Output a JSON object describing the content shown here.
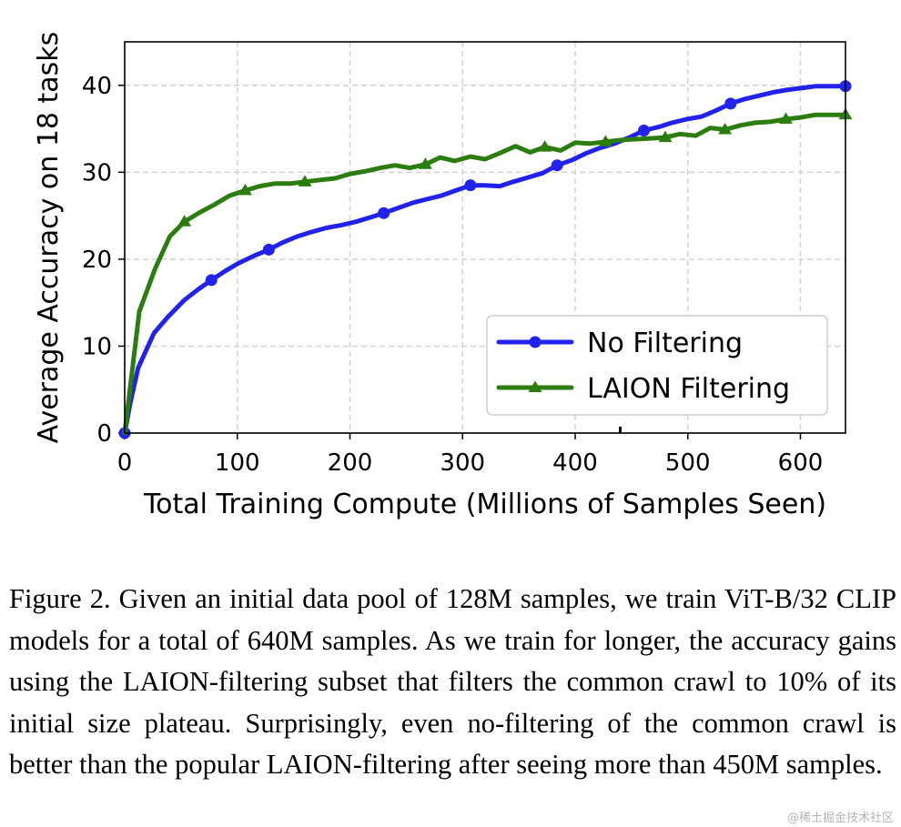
{
  "chart_data": {
    "type": "line",
    "xlabel": "Total Training Compute (Millions of Samples Seen)",
    "ylabel": "Average Accuracy on 18 tasks",
    "xlim": [
      0,
      640
    ],
    "ylim": [
      0,
      45
    ],
    "xticks": [
      0,
      100,
      200,
      300,
      400,
      500,
      600
    ],
    "yticks": [
      0,
      10,
      20,
      30,
      40
    ],
    "grid": true,
    "legend_position": "lower-right",
    "series": [
      {
        "name": "No Filtering",
        "color": "#2222ee",
        "marker": "circle",
        "x": [
          0,
          5,
          12,
          26,
          38,
          53,
          65,
          77,
          90,
          102,
          115,
          128,
          140,
          153,
          165,
          179,
          192,
          205,
          218,
          230,
          243,
          256,
          268,
          281,
          294,
          307,
          320,
          333,
          345,
          358,
          371,
          384,
          397,
          410,
          422,
          435,
          448,
          461,
          474,
          486,
          499,
          512,
          525,
          538,
          550,
          563,
          576,
          589,
          602,
          614,
          627,
          640
        ],
        "y": [
          0,
          3.5,
          7.5,
          11.5,
          13.3,
          15.3,
          16.5,
          17.6,
          18.7,
          19.6,
          20.4,
          21.1,
          21.9,
          22.6,
          23.1,
          23.6,
          23.9,
          24.3,
          24.8,
          25.3,
          25.9,
          26.5,
          26.9,
          27.3,
          27.9,
          28.5,
          28.5,
          28.4,
          28.9,
          29.4,
          29.9,
          30.8,
          31.4,
          32.2,
          32.8,
          33.3,
          34.0,
          34.8,
          35.2,
          35.7,
          36.1,
          36.4,
          37.1,
          37.9,
          38.4,
          38.8,
          39.2,
          39.5,
          39.7,
          39.9,
          39.9,
          39.9
        ],
        "marker_points": [
          0,
          7,
          11,
          19,
          25,
          31,
          37,
          43,
          51
        ]
      },
      {
        "name": "LAION Filtering",
        "color": "#2a7d0e",
        "marker": "triangle",
        "x": [
          0,
          13,
          27,
          40,
          53,
          67,
          80,
          93,
          107,
          120,
          133,
          147,
          160,
          173,
          187,
          200,
          213,
          227,
          240,
          253,
          267,
          280,
          293,
          307,
          320,
          333,
          347,
          360,
          373,
          387,
          400,
          413,
          427,
          440,
          453,
          467,
          480,
          493,
          507,
          520,
          533,
          547,
          560,
          573,
          587,
          600,
          613,
          627,
          640
        ],
        "y": [
          0,
          14.0,
          18.9,
          22.6,
          24.3,
          25.4,
          26.3,
          27.3,
          27.9,
          28.4,
          28.7,
          28.7,
          28.9,
          29.1,
          29.3,
          29.8,
          30.1,
          30.5,
          30.8,
          30.5,
          30.9,
          31.7,
          31.3,
          31.8,
          31.5,
          32.2,
          33.0,
          32.3,
          32.9,
          32.5,
          33.4,
          33.3,
          33.5,
          33.7,
          33.8,
          33.9,
          34.0,
          34.4,
          34.2,
          35.1,
          34.9,
          35.4,
          35.7,
          35.8,
          36.1,
          36.3,
          36.6,
          36.6,
          36.6
        ],
        "marker_points": [
          4,
          8,
          12,
          20,
          28,
          32,
          36,
          40,
          44,
          48
        ]
      }
    ]
  },
  "caption": "Figure 2.  Given an initial data pool of 128M samples, we train ViT-B/32 CLIP models for a total of 640M samples. As we train for longer, the accuracy gains using the LAION-filtering subset that filters the common crawl to 10% of its initial size plateau. Surprisingly, even no-filtering of the common crawl is better than the popular LAION-filtering after seeing more than 450M samples.",
  "watermark": "@稀土掘金技术社区"
}
